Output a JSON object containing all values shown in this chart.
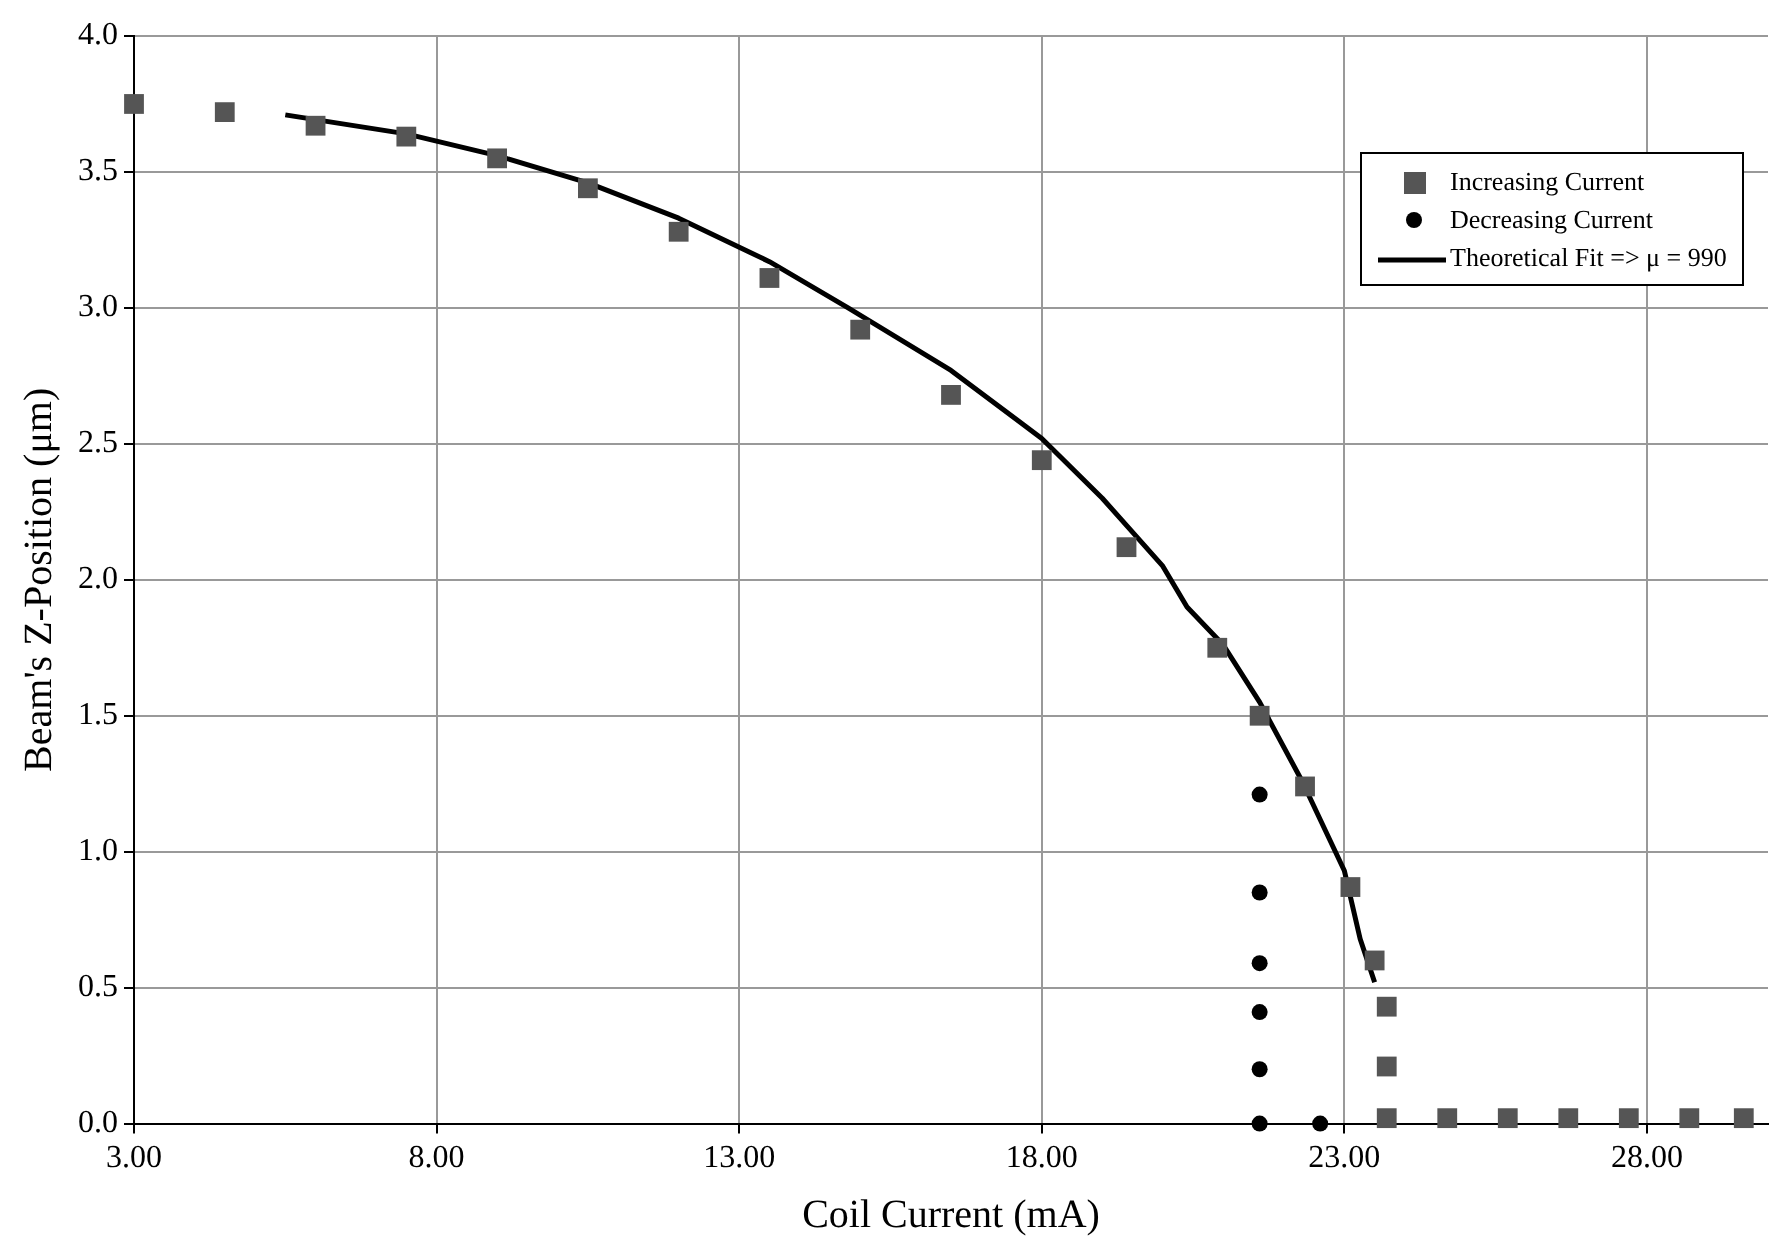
{
  "chart_data": {
    "type": "scatter",
    "xlabel": "Coil Current (mA)",
    "ylabel": "Beam's Z-Position (μm)",
    "xlim": [
      3,
      30
    ],
    "xticks": [
      {
        "value": 3,
        "label": "3.00"
      },
      {
        "value": 8,
        "label": "8.00"
      },
      {
        "value": 13,
        "label": "13.00"
      },
      {
        "value": 18,
        "label": "18.00"
      },
      {
        "value": 23,
        "label": "23.00"
      },
      {
        "value": 28,
        "label": "28.00"
      }
    ],
    "ylim": [
      0,
      4
    ],
    "yticks": [
      {
        "value": 0,
        "label": "0.0"
      },
      {
        "value": 0.5,
        "label": "0.5"
      },
      {
        "value": 1,
        "label": "1.0"
      },
      {
        "value": 1.5,
        "label": "1.5"
      },
      {
        "value": 2,
        "label": "2.0"
      },
      {
        "value": 2.5,
        "label": "2.5"
      },
      {
        "value": 3,
        "label": "3.0"
      },
      {
        "value": 3.5,
        "label": "3.5"
      },
      {
        "value": 4,
        "label": "4.0"
      }
    ],
    "grid": true,
    "legend": "top right",
    "series": [
      {
        "name": "Increasing Current",
        "marker": "square",
        "color": "#555555",
        "x": [
          3,
          4.5,
          6,
          7.5,
          9,
          10.5,
          12,
          13.5,
          15,
          16.5,
          18,
          19.4,
          20.9,
          21.6,
          22.35,
          23.1,
          23.5,
          23.7,
          23.7,
          23.7,
          24.7,
          25.7,
          26.7,
          27.7,
          28.7,
          29.6
        ],
        "values": [
          3.75,
          3.72,
          3.67,
          3.63,
          3.55,
          3.44,
          3.28,
          3.11,
          2.92,
          2.68,
          2.44,
          2.12,
          1.75,
          1.5,
          1.24,
          0.87,
          0.6,
          0.43,
          0.21,
          0.02,
          0.02,
          0.02,
          0.02,
          0.02,
          0.02,
          0.02
        ]
      },
      {
        "name": "Decreasing Current",
        "marker": "circle",
        "color": "#000000",
        "x": [
          21.6,
          21.6,
          21.6,
          21.6,
          21.6,
          21.6,
          22.6
        ],
        "values": [
          1.21,
          0.85,
          0.59,
          0.41,
          0.2,
          0,
          0
        ]
      },
      {
        "name": "Theoretical Fit => μ = 990",
        "type": "line",
        "marker": "none",
        "line_style": "solid",
        "color": "#000000",
        "x": [
          5.5,
          7.5,
          9,
          10.5,
          12,
          13.5,
          14.8,
          16.5,
          18,
          19,
          20,
          20.4,
          21,
          21.6,
          22.3,
          23,
          23.26,
          23.5
        ],
        "values": [
          3.71,
          3.64,
          3.56,
          3.46,
          3.33,
          3.17,
          3,
          2.77,
          2.52,
          2.3,
          2.05,
          1.9,
          1.76,
          1.55,
          1.26,
          0.93,
          0.68,
          0.52
        ]
      }
    ]
  }
}
